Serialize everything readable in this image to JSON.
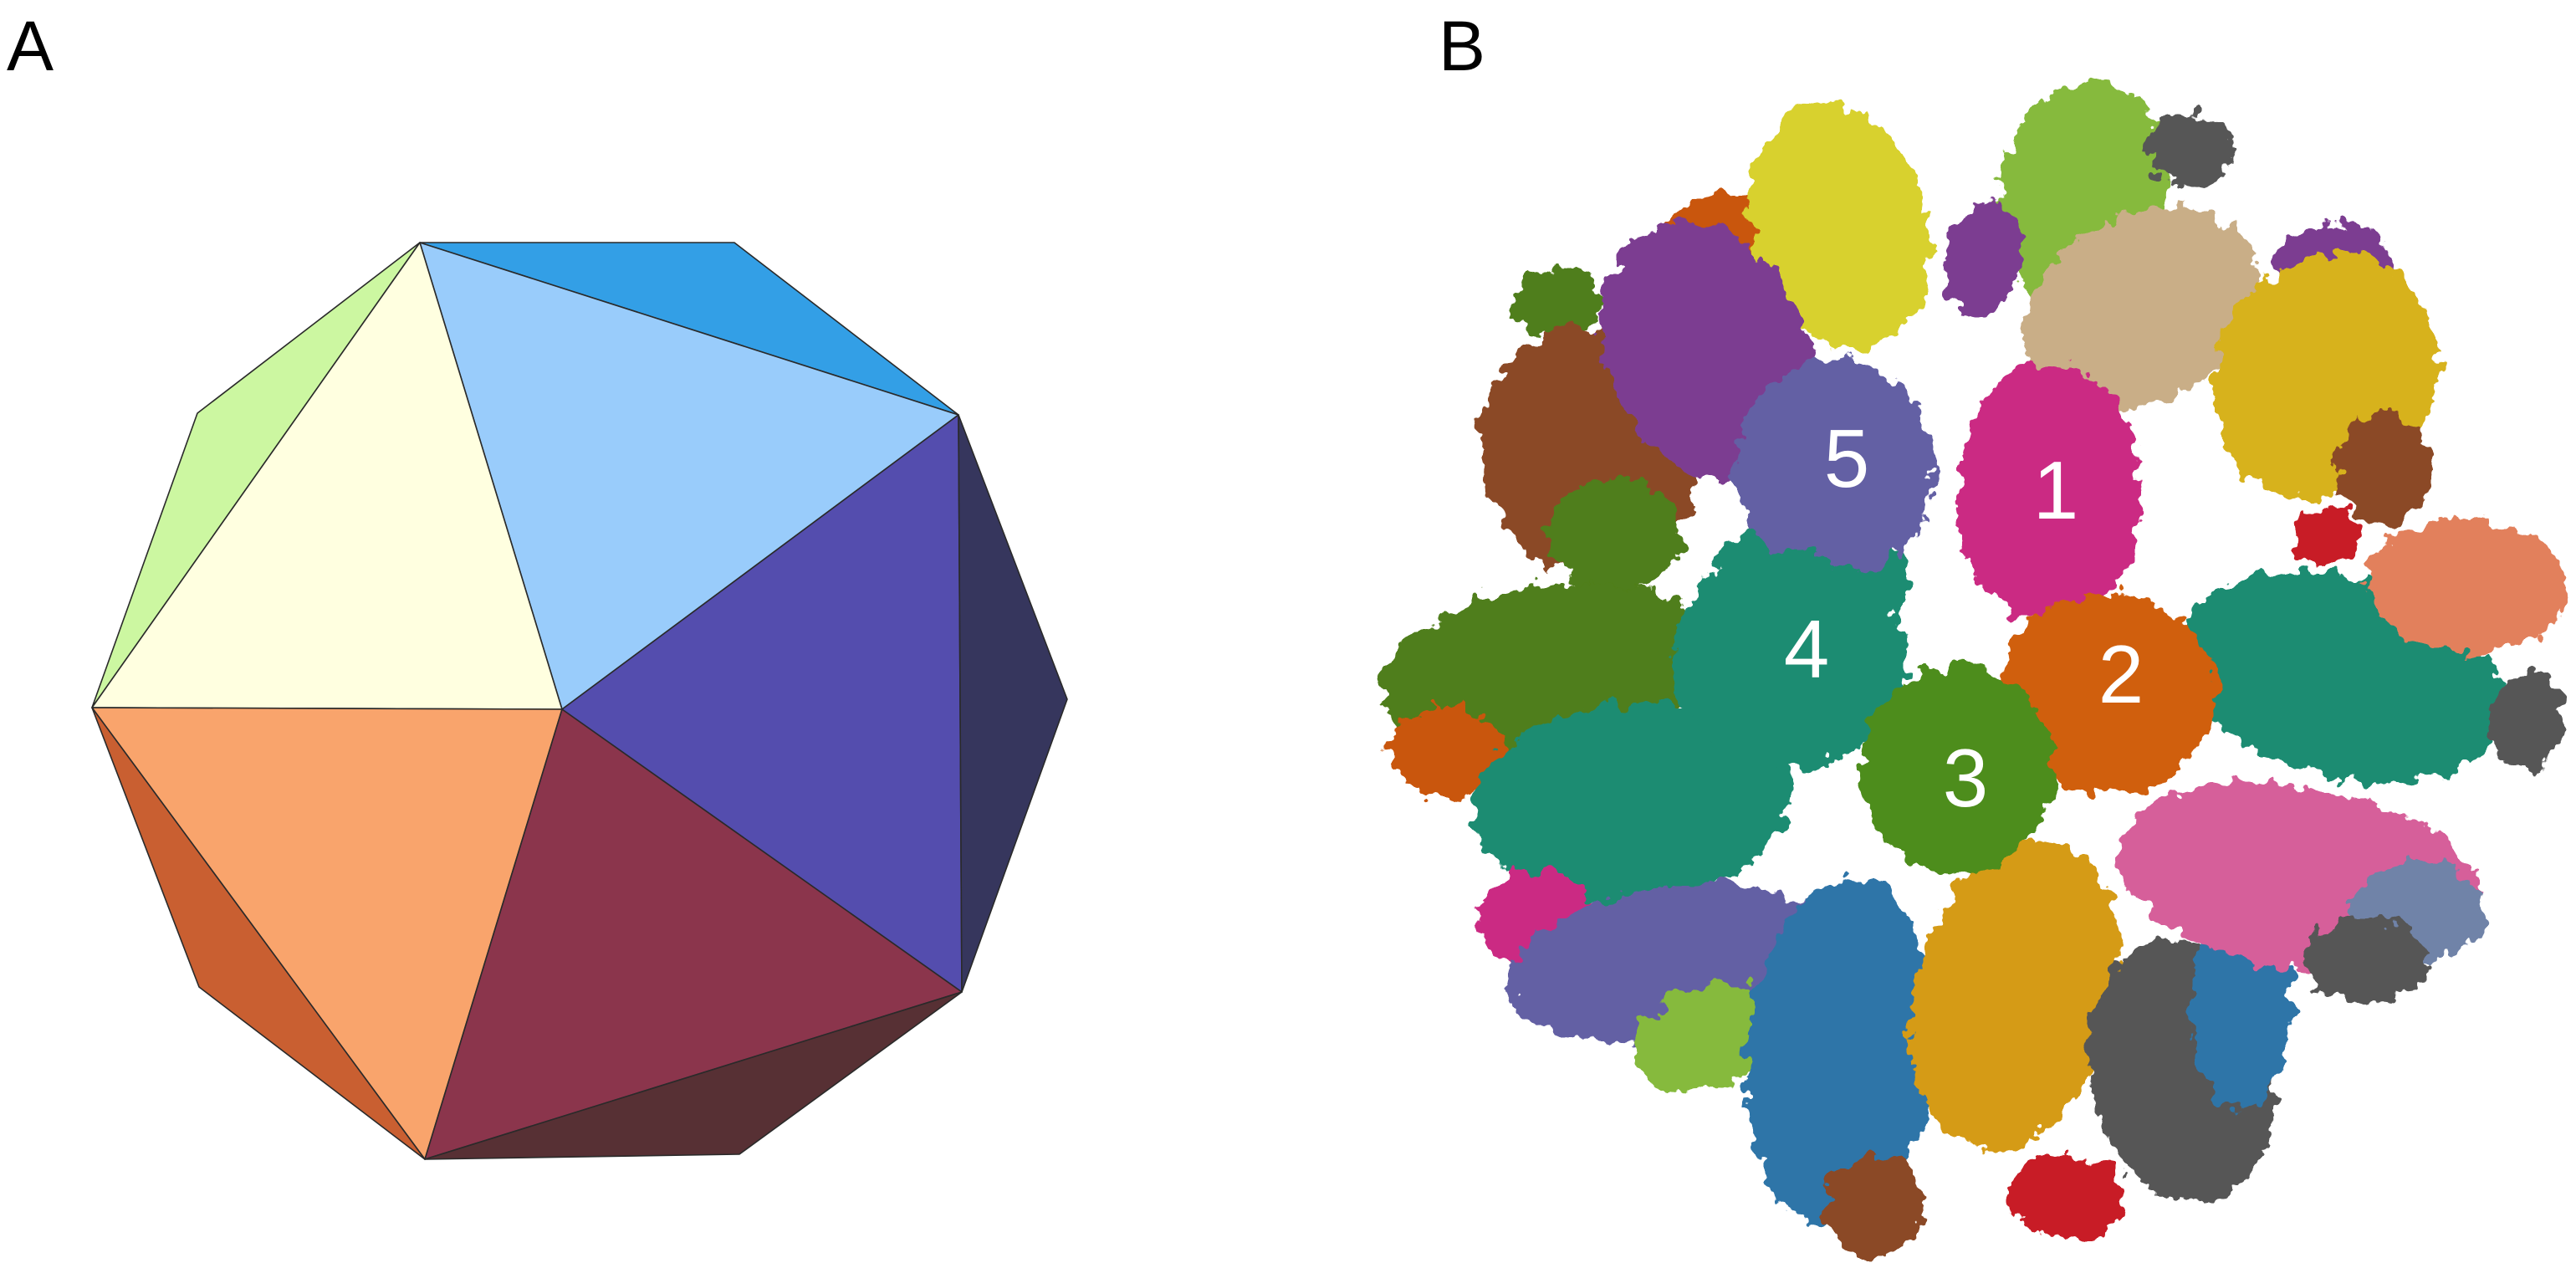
{
  "panels": {
    "a": {
      "letter": "A"
    },
    "b": {
      "letter": "B"
    }
  },
  "icosahedron": {
    "colors": {
      "top_center": "#99CCFB",
      "top_right_dark": "#339FE6",
      "upper_left": "#FFFFE0",
      "upper_left_edge": "#CCF7A1",
      "right": "#544DAE",
      "right_edge": "#36365D",
      "lower_left": "#F9A46C",
      "lower_left_edge": "#C95F31",
      "bottom": "#8B354C",
      "bottom_edge": "#573034"
    }
  },
  "capsid": {
    "labels": [
      "1",
      "2",
      "3",
      "4",
      "5"
    ],
    "colors": {
      "subunit_1": "#CB2C83",
      "subunit_2": "#D05F0E",
      "subunit_3": "#4E8D1A",
      "subunit_4": "#1F8C72",
      "subunit_5": "#6460A4",
      "yellow": "#D8D12E",
      "lime": "#86BA3D",
      "tan": "#C9AE87",
      "gold": "#D7B21E",
      "amber": "#D59B16",
      "purple": "#7C3E91",
      "brown": "#8B4A26",
      "olive": "#507E1A",
      "teal": "#1F8C72",
      "salmon": "#E2805C",
      "pink": "#D65E9A",
      "blue": "#2E74A8",
      "gray": "#575757",
      "red": "#C81E25",
      "dark_orange": "#C9560E",
      "slate": "#7083A8"
    }
  }
}
